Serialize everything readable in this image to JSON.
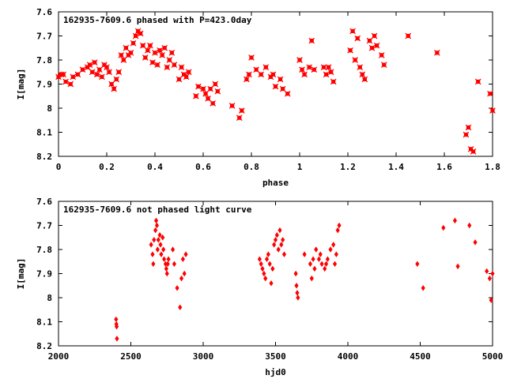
{
  "chart_data": [
    {
      "type": "scatter",
      "title": "162935-7609.6 phased with P=423.0day",
      "xlabel": "phase",
      "ylabel": "I[mag]",
      "xlim": [
        0,
        1.8
      ],
      "ylim": [
        8.2,
        7.6
      ],
      "y_inverted": true,
      "xticks": [
        "0",
        "0.2",
        "0.4",
        "0.6",
        "0.8",
        "1",
        "1.2",
        "1.4",
        "1.6",
        "1.8"
      ],
      "yticks": [
        "7.6",
        "7.7",
        "7.8",
        "7.9",
        "8",
        "8.1",
        "8.2"
      ],
      "marker_color": "#ff0000",
      "marker": "filled-square-cross",
      "series": [
        {
          "x": [
            0.0,
            0.01,
            0.02,
            0.03,
            0.05,
            0.06,
            0.08,
            0.1,
            0.12,
            0.13,
            0.14,
            0.15,
            0.16,
            0.17,
            0.18,
            0.19,
            0.2,
            0.21,
            0.22,
            0.23,
            0.24,
            0.25,
            0.26,
            0.27,
            0.28,
            0.29,
            0.3,
            0.31,
            0.32,
            0.33,
            0.34,
            0.35,
            0.36,
            0.37,
            0.38,
            0.39,
            0.4,
            0.41,
            0.42,
            0.43,
            0.44,
            0.45,
            0.46,
            0.47,
            0.48,
            0.5,
            0.51,
            0.52,
            0.53,
            0.54,
            0.57,
            0.58,
            0.6,
            0.61,
            0.62,
            0.63,
            0.64,
            0.65,
            0.66,
            0.72,
            0.75,
            0.76,
            0.78,
            0.79,
            0.8,
            0.82,
            0.84,
            0.86,
            0.88,
            0.89,
            0.9,
            0.92,
            0.93,
            0.95,
            1.0,
            1.01,
            1.02,
            1.04,
            1.05,
            1.06,
            1.1,
            1.11,
            1.12,
            1.13,
            1.14,
            1.21,
            1.22,
            1.23,
            1.24,
            1.25,
            1.26,
            1.27,
            1.29,
            1.3,
            1.31,
            1.32,
            1.34,
            1.35,
            1.45,
            1.57,
            1.69,
            1.7,
            1.71,
            1.72,
            1.74,
            1.79,
            1.8
          ],
          "y": [
            7.87,
            7.86,
            7.86,
            7.89,
            7.9,
            7.87,
            7.86,
            7.84,
            7.83,
            7.82,
            7.85,
            7.81,
            7.86,
            7.84,
            7.87,
            7.82,
            7.83,
            7.85,
            7.9,
            7.92,
            7.88,
            7.85,
            7.78,
            7.8,
            7.75,
            7.78,
            7.77,
            7.73,
            7.7,
            7.68,
            7.69,
            7.74,
            7.79,
            7.76,
            7.74,
            7.81,
            7.77,
            7.82,
            7.76,
            7.78,
            7.75,
            7.83,
            7.8,
            7.77,
            7.82,
            7.88,
            7.83,
            7.86,
            7.87,
            7.85,
            7.95,
            7.91,
            7.92,
            7.94,
            7.96,
            7.92,
            7.98,
            7.9,
            7.93,
            7.99,
            8.04,
            8.01,
            7.88,
            7.86,
            7.79,
            7.84,
            7.86,
            7.83,
            7.87,
            7.86,
            7.91,
            7.88,
            7.92,
            7.94,
            7.8,
            7.84,
            7.86,
            7.83,
            7.72,
            7.84,
            7.83,
            7.86,
            7.83,
            7.85,
            7.89,
            7.76,
            7.68,
            7.8,
            7.71,
            7.83,
            7.86,
            7.88,
            7.72,
            7.75,
            7.7,
            7.74,
            7.78,
            7.82,
            7.7,
            7.77,
            8.11,
            8.08,
            8.17,
            8.18,
            7.89,
            7.94,
            8.01
          ]
        }
      ]
    },
    {
      "type": "scatter",
      "title": "162935-7609.6 not phased light curve",
      "xlabel": "hjd0",
      "ylabel": "I[mag]",
      "xlim": [
        2000,
        5000
      ],
      "ylim": [
        8.2,
        7.6
      ],
      "y_inverted": true,
      "xticks": [
        "2000",
        "2500",
        "3000",
        "3500",
        "4000",
        "4500",
        "5000"
      ],
      "yticks": [
        "7.6",
        "7.7",
        "7.8",
        "7.9",
        "8",
        "8.1",
        "8.2"
      ],
      "marker_color": "#ff0000",
      "marker": "diamond",
      "series": [
        {
          "x": [
            2398,
            2400,
            2402,
            2404,
            2640,
            2650,
            2655,
            2660,
            2670,
            2675,
            2680,
            2685,
            2690,
            2700,
            2705,
            2710,
            2720,
            2725,
            2730,
            2740,
            2745,
            2750,
            2755,
            2760,
            2790,
            2800,
            2820,
            2840,
            2850,
            2860,
            2870,
            2880,
            3390,
            3400,
            3410,
            3420,
            3430,
            3440,
            3450,
            3460,
            3470,
            3480,
            3490,
            3500,
            3510,
            3520,
            3530,
            3540,
            3550,
            3560,
            3640,
            3645,
            3650,
            3655,
            3700,
            3740,
            3750,
            3760,
            3770,
            3780,
            3800,
            3810,
            3820,
            3840,
            3850,
            3860,
            3880,
            3900,
            3910,
            3920,
            3930,
            3940,
            4480,
            4520,
            4660,
            4740,
            4760,
            4840,
            4880,
            4960,
            4980,
            4990,
            5000
          ],
          "y": [
            8.09,
            8.11,
            8.12,
            8.17,
            7.78,
            7.82,
            7.86,
            7.76,
            7.72,
            7.68,
            7.7,
            7.8,
            7.76,
            7.74,
            7.78,
            7.82,
            7.75,
            7.8,
            7.84,
            7.86,
            7.88,
            7.9,
            7.86,
            7.84,
            7.8,
            7.86,
            7.96,
            8.04,
            7.92,
            7.84,
            7.9,
            7.82,
            7.84,
            7.86,
            7.88,
            7.9,
            7.92,
            7.84,
            7.82,
            7.86,
            7.94,
            7.88,
            7.78,
            7.76,
            7.74,
            7.8,
            7.72,
            7.78,
            7.76,
            7.82,
            7.9,
            7.95,
            7.98,
            8.0,
            7.82,
            7.86,
            7.92,
            7.84,
            7.88,
            7.8,
            7.84,
            7.82,
            7.86,
            7.88,
            7.86,
            7.84,
            7.8,
            7.78,
            7.86,
            7.82,
            7.72,
            7.7,
            7.86,
            7.96,
            7.71,
            7.68,
            7.87,
            7.7,
            7.77,
            7.89,
            7.92,
            8.01,
            7.9
          ]
        }
      ]
    }
  ]
}
